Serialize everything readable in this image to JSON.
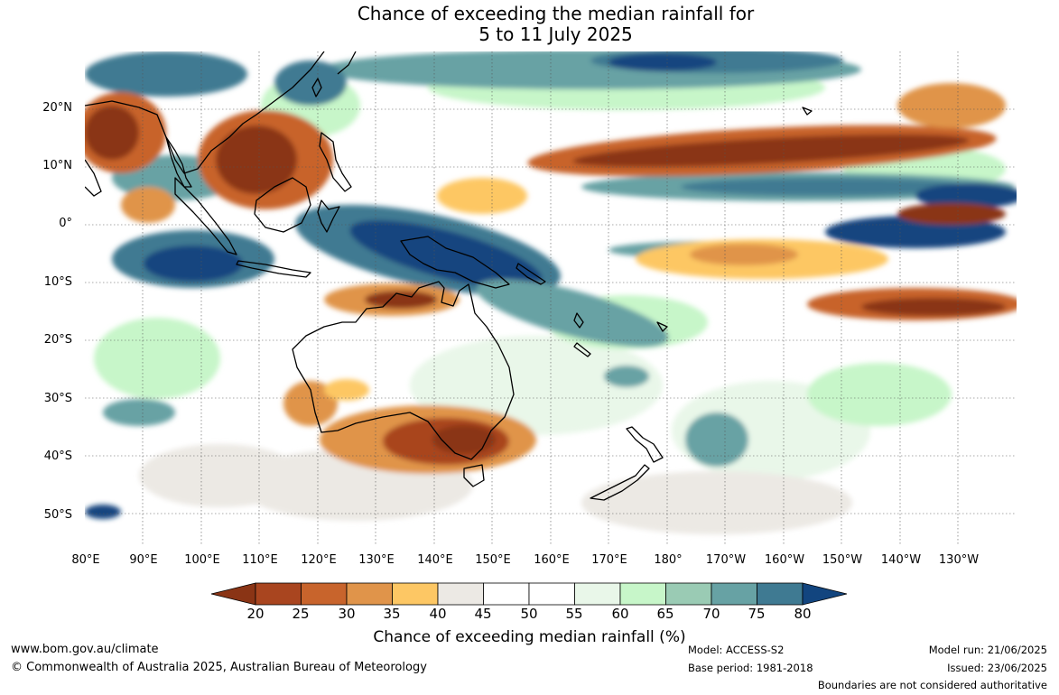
{
  "title_line1": "Chance of exceeding the median rainfall for",
  "title_line2": "5 to 11 July 2025",
  "lat_labels": [
    "20°N",
    "10°N",
    "0°",
    "10°S",
    "20°S",
    "30°S",
    "40°S",
    "50°S"
  ],
  "lon_labels": [
    "80°E",
    "90°E",
    "100°E",
    "110°E",
    "120°E",
    "130°E",
    "140°E",
    "150°E",
    "160°E",
    "170°E",
    "180°",
    "170°W",
    "160°W",
    "150°W",
    "140°W",
    "130°W"
  ],
  "colorbar": {
    "ticks": [
      "20",
      "25",
      "30",
      "35",
      "40",
      "45",
      "50",
      "55",
      "60",
      "65",
      "70",
      "75",
      "80"
    ],
    "label": "Chance of exceeding median rainfall (%)",
    "colors": [
      "#8a3415",
      "#a9451f",
      "#c8642c",
      "#e0944a",
      "#fdc764",
      "#ece9e4",
      "#ffffff",
      "#ffffff",
      "#e9f7e9",
      "#c7f6c9",
      "#9acbb4",
      "#67a2a4",
      "#3f7a92",
      "#12457f"
    ]
  },
  "footer": {
    "website": "www.bom.gov.au/climate",
    "copyright": "© Commonwealth of Australia 2025, Australian Bureau of Meteorology",
    "model": "Model: ACCESS-S2",
    "base_period": "Base period: 1981-2018",
    "model_run": "Model run: 21/06/2025",
    "issued": "Issued: 23/06/2025",
    "disclaimer": "Boundaries are not considered authoritative"
  }
}
